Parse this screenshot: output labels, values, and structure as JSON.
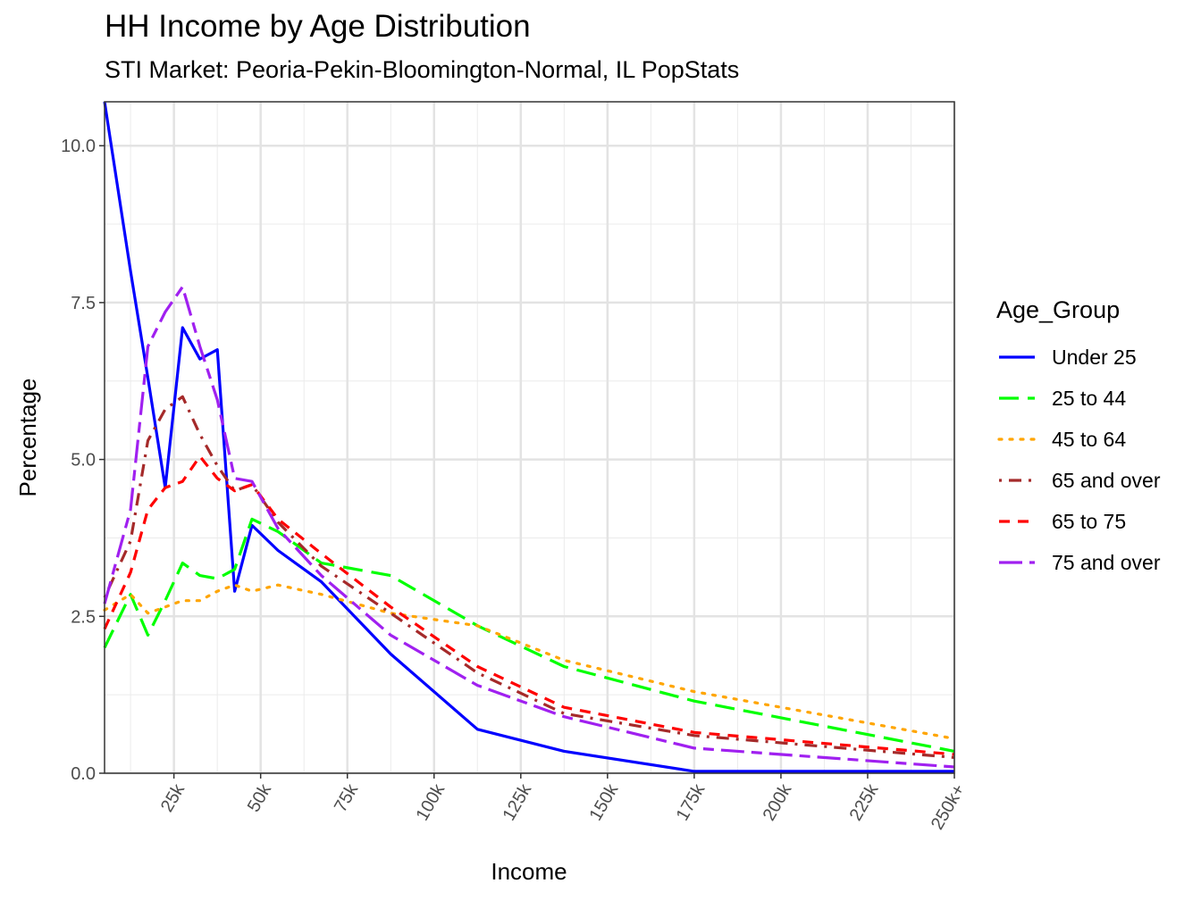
{
  "chart_data": {
    "type": "line",
    "title": "HH Income by Age Distribution",
    "subtitle": "STI Market: Peoria-Pekin-Bloomington-Normal, IL PopStats",
    "xlabel": "Income",
    "ylabel": "Percentage",
    "xlim": [
      5,
      250
    ],
    "ylim": [
      0,
      10.7
    ],
    "x_ticks": [
      25,
      50,
      75,
      100,
      125,
      150,
      175,
      200,
      225,
      250
    ],
    "x_tick_labels": [
      "25k",
      "50k",
      "75k",
      "100k",
      "125k",
      "150k",
      "175k",
      "200k",
      "225k",
      "250k+"
    ],
    "y_ticks": [
      0,
      2.5,
      5,
      7.5,
      10
    ],
    "y_tick_labels": [
      "0.0",
      "2.5",
      "5.0",
      "7.5",
      "10.0"
    ],
    "grid": true,
    "legend_title": "Age_Group",
    "legend_position": "right",
    "x": [
      5,
      12.5,
      17.5,
      22.5,
      27.5,
      32.5,
      37.5,
      42.5,
      47.5,
      55,
      67.5,
      87.5,
      112.5,
      137.5,
      175,
      250
    ],
    "series": [
      {
        "name": "Under 25",
        "color": "#0000ff",
        "dash": "solid",
        "values": [
          10.7,
          8.0,
          6.3,
          4.55,
          7.1,
          6.6,
          6.75,
          2.9,
          3.95,
          3.55,
          3.05,
          1.9,
          0.7,
          0.35,
          0.03,
          0.03
        ]
      },
      {
        "name": "25 to 44",
        "color": "#00ff00",
        "dash": "longdash",
        "values": [
          2.0,
          2.85,
          2.2,
          2.75,
          3.35,
          3.15,
          3.1,
          3.25,
          4.05,
          3.85,
          3.35,
          3.15,
          2.35,
          1.7,
          1.15,
          0.35
        ]
      },
      {
        "name": "45 to 64",
        "color": "#ffa500",
        "dash": "dotted",
        "values": [
          2.6,
          2.85,
          2.55,
          2.65,
          2.75,
          2.75,
          2.9,
          3.0,
          2.9,
          3.0,
          2.85,
          2.55,
          2.35,
          1.8,
          1.3,
          0.55
        ]
      },
      {
        "name": "65 and over",
        "color": "#a52a2a",
        "dash": "dotdash",
        "values": [
          2.8,
          3.7,
          5.3,
          5.8,
          6.0,
          5.4,
          4.9,
          4.5,
          4.6,
          4.0,
          3.3,
          2.55,
          1.6,
          0.95,
          0.6,
          0.25
        ]
      },
      {
        "name": "65 to 75",
        "color": "#ff0000",
        "dash": "dashed",
        "values": [
          2.3,
          3.2,
          4.2,
          4.55,
          4.65,
          5.05,
          4.7,
          4.5,
          4.6,
          4.05,
          3.5,
          2.65,
          1.7,
          1.05,
          0.65,
          0.3
        ]
      },
      {
        "name": "75 and over",
        "color": "#a020f0",
        "dash": "twodash",
        "values": [
          2.7,
          4.2,
          6.8,
          7.35,
          7.75,
          6.8,
          5.95,
          4.7,
          4.65,
          3.9,
          3.15,
          2.2,
          1.4,
          0.9,
          0.4,
          0.1
        ]
      }
    ]
  }
}
